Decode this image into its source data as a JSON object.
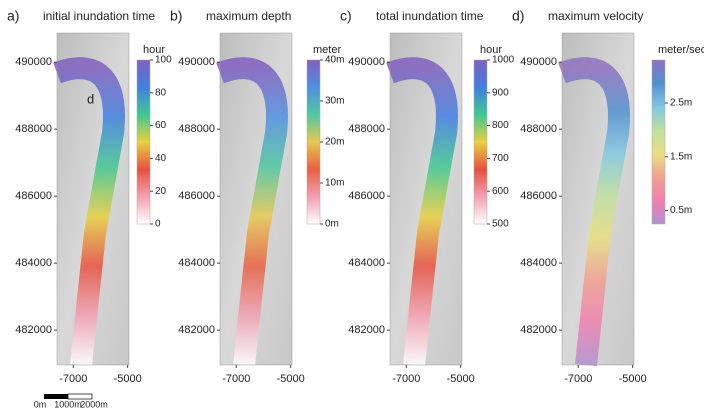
{
  "panels": [
    {
      "label": "a)",
      "title": "initial inundation time",
      "annotation": "d",
      "ylim": [
        480960,
        490870
      ],
      "yticks": [
        482000,
        484000,
        486000,
        488000,
        490000
      ],
      "xlim": [
        -7600,
        -4950
      ],
      "xticks": [
        -7000,
        -5000
      ],
      "colorbar": {
        "unit": "hour",
        "clim": [
          0,
          100
        ],
        "ticks": [
          0,
          20,
          40,
          60,
          80,
          100
        ],
        "colors": [
          "#ffffff",
          "#f4a0b0",
          "#e85040",
          "#e8d040",
          "#40c890",
          "#4080e0",
          "#8060c0"
        ]
      }
    },
    {
      "label": "b)",
      "title": "maximum depth",
      "ylim": [
        480960,
        490870
      ],
      "yticks": [
        482000,
        484000,
        486000,
        488000,
        490000
      ],
      "xlim": [
        -7600,
        -4950
      ],
      "xticks": [
        -7000,
        -5000
      ],
      "colorbar": {
        "unit": "meter",
        "clim": [
          0,
          40
        ],
        "ticks": [
          {
            "value": 0,
            "label": "0m"
          },
          {
            "value": 10,
            "label": "10m"
          },
          {
            "value": 20,
            "label": "20m"
          },
          {
            "value": 30,
            "label": "30m"
          },
          {
            "value": 40,
            "label": "40m"
          }
        ],
        "colors": [
          "#ffffff",
          "#f0a0b0",
          "#e86040",
          "#e8c850",
          "#50c8a0",
          "#5090e0",
          "#8060c0"
        ]
      }
    },
    {
      "label": "c)",
      "title": "total inundation time",
      "ylim": [
        480960,
        490870
      ],
      "yticks": [
        482000,
        484000,
        486000,
        488000,
        490000
      ],
      "xlim": [
        -7600,
        -4950
      ],
      "xticks": [
        -7000,
        -5000
      ],
      "colorbar": {
        "unit": "hour",
        "clim": [
          500,
          1000
        ],
        "ticks": [
          500,
          600,
          700,
          800,
          900,
          1000
        ],
        "colors": [
          "#ffffff",
          "#f4a0b0",
          "#e85040",
          "#e8d040",
          "#40c890",
          "#4080e0",
          "#8060c0"
        ]
      }
    },
    {
      "label": "d)",
      "title": "maximum velocity",
      "ylim": [
        480960,
        490870
      ],
      "yticks": [
        482000,
        484000,
        486000,
        488000,
        490000
      ],
      "xlim": [
        -7600,
        -4950
      ],
      "xticks": [
        -7000,
        -5000
      ],
      "colorbar": {
        "unit": "meter/sec",
        "clim": [
          0.25,
          3.3
        ],
        "ticks": [
          {
            "value": 0.5,
            "label": "0.5m"
          },
          {
            "value": 1.5,
            "label": "1.5m"
          },
          {
            "value": 2.5,
            "label": "2.5m"
          }
        ],
        "colors": [
          "#b090d0",
          "#f080b0",
          "#f0a090",
          "#e8e080",
          "#c0e0a0",
          "#80c8e0",
          "#5090d0",
          "#9070c0"
        ]
      }
    }
  ],
  "scale_bar": {
    "labels": [
      "0m",
      "1000m",
      "2000m"
    ]
  }
}
